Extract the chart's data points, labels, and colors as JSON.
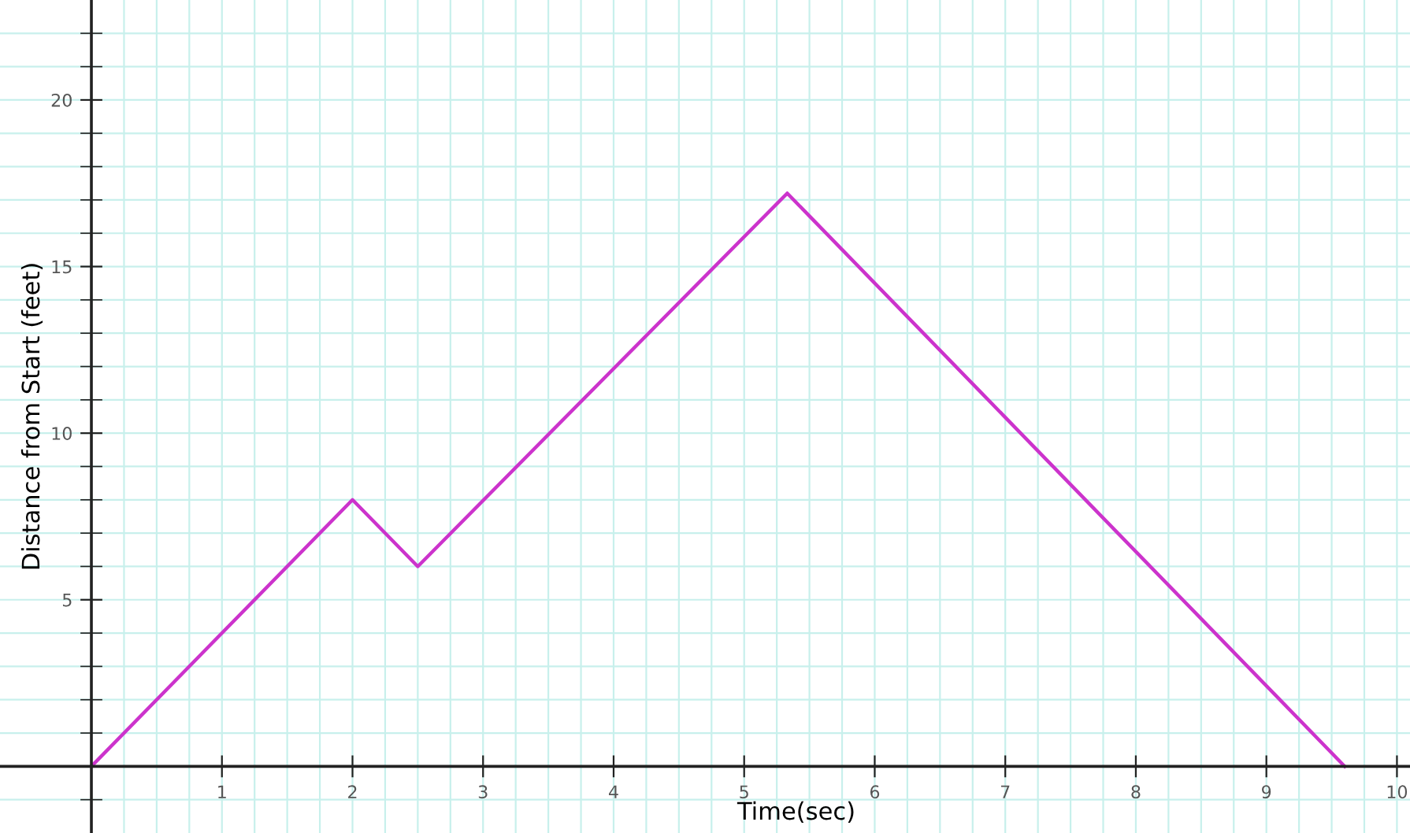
{
  "chart_data": {
    "type": "line",
    "xlabel": "Time(sec)",
    "ylabel": "Distance from Start (feet)",
    "x": [
      0,
      2,
      2.5,
      5.33,
      9.6
    ],
    "series": [
      {
        "color": "#cc33cc",
        "values": [
          0,
          8,
          6,
          17.2,
          0
        ]
      }
    ],
    "xlim": [
      -0.7,
      10.1
    ],
    "ylim": [
      -2,
      23
    ],
    "xticks": [
      {
        "value": 0.25,
        "label": null
      },
      {
        "value": 0.5,
        "label": null
      },
      {
        "value": 0.75,
        "label": null
      },
      1,
      {
        "value": 1.25,
        "label": null
      },
      {
        "value": 1.5,
        "label": null
      },
      {
        "value": 1.75,
        "label": null
      },
      2,
      {
        "value": 2.25,
        "label": null
      },
      {
        "value": 2.5,
        "label": null
      },
      {
        "value": 2.75,
        "label": null
      },
      3,
      {
        "value": 3.25,
        "label": null
      },
      {
        "value": 3.5,
        "label": null
      },
      {
        "value": 3.75,
        "label": null
      },
      4,
      {
        "value": 4.25,
        "label": null
      },
      {
        "value": 4.5,
        "label": null
      },
      {
        "value": 4.75,
        "label": null
      },
      5,
      {
        "value": 5.25,
        "label": null
      },
      {
        "value": 5.5,
        "label": null
      },
      {
        "value": 5.75,
        "label": null
      },
      6,
      {
        "value": 6.25,
        "label": null
      },
      {
        "value": 6.5,
        "label": null
      },
      {
        "value": 6.75,
        "label": null
      },
      7,
      {
        "value": 7.25,
        "label": null
      },
      {
        "value": 7.5,
        "label": null
      },
      {
        "value": 7.75,
        "label": null
      },
      8,
      {
        "value": 8.25,
        "label": null
      },
      {
        "value": 8.5,
        "label": null
      },
      {
        "value": 8.75,
        "label": null
      },
      9,
      {
        "value": 9.25,
        "label": null
      },
      {
        "value": 9.5,
        "label": null
      },
      {
        "value": 9.75,
        "label": null
      },
      10
    ],
    "yticks": [
      {
        "value": -1,
        "label": null
      },
      {
        "value": 1,
        "label": null
      },
      {
        "value": 2,
        "label": null
      },
      {
        "value": 3,
        "label": null
      },
      {
        "value": 4,
        "label": null
      },
      5,
      {
        "value": 6,
        "label": null
      },
      {
        "value": 7,
        "label": null
      },
      {
        "value": 8,
        "label": null
      },
      {
        "value": 9,
        "label": null
      },
      10,
      {
        "value": 11,
        "label": null
      },
      {
        "value": 12,
        "label": null
      },
      {
        "value": 13,
        "label": null
      },
      {
        "value": 14,
        "label": null
      },
      15,
      {
        "value": 16,
        "label": null
      },
      {
        "value": 17,
        "label": null
      },
      {
        "value": 18,
        "label": null
      },
      {
        "value": 19,
        "label": null
      },
      20,
      {
        "value": 21,
        "label": null
      },
      {
        "value": 22,
        "label": null
      }
    ],
    "grid": true,
    "marker": "none",
    "line_style": "solid"
  }
}
